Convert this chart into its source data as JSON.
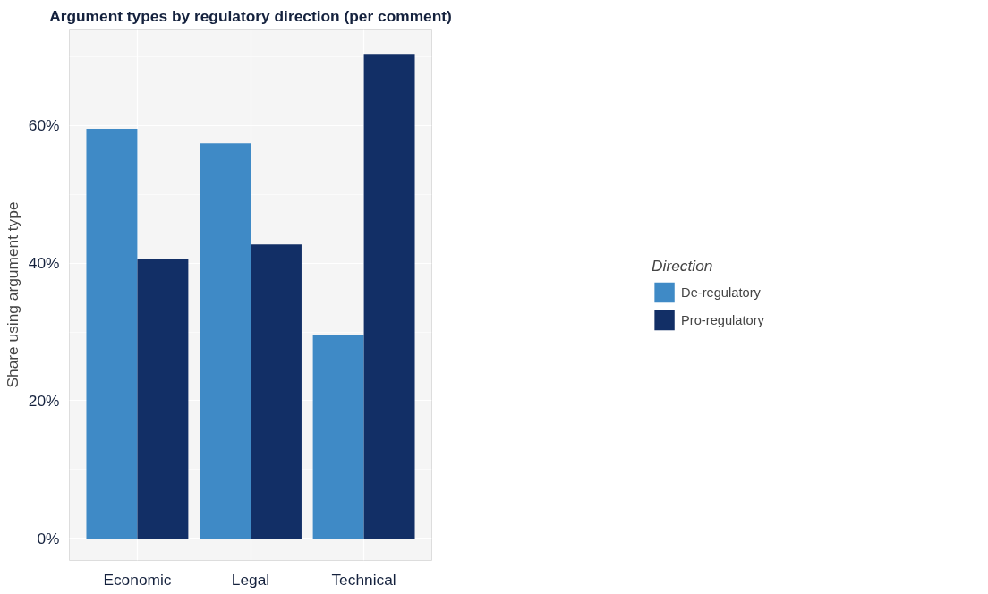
{
  "chart_data": {
    "type": "bar",
    "title": "Argument types by regulatory direction (per comment)",
    "ylabel": "Share using argument type",
    "legend_title": "Direction",
    "categories": [
      "Economic",
      "Legal",
      "Technical"
    ],
    "series": [
      {
        "name": "De-regulatory",
        "color": "#3f8ac6",
        "values": [
          59.5,
          57.4,
          29.6
        ]
      },
      {
        "name": "Pro-regulatory",
        "color": "#122f66",
        "values": [
          40.6,
          42.7,
          70.4
        ]
      }
    ],
    "ylim": [
      -3.2,
      74
    ],
    "yticks": [
      {
        "value": 0,
        "label": "0%"
      },
      {
        "value": 20,
        "label": "20%"
      },
      {
        "value": 40,
        "label": "40%"
      },
      {
        "value": 60,
        "label": "60%"
      }
    ],
    "grid": true,
    "legend": "right"
  }
}
